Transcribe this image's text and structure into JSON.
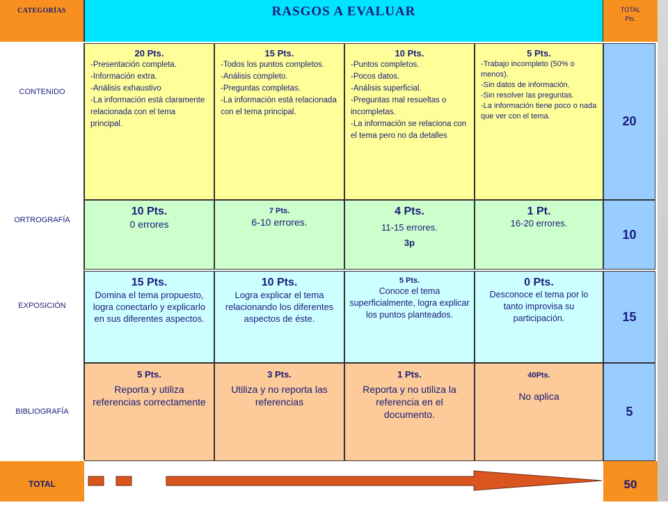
{
  "header": {
    "categories_label": "CATEGORÍAS",
    "title": "RASGOS A EVALUAR",
    "total_label_line1": "TOTAL",
    "total_label_line2": "Pts."
  },
  "categories": [
    {
      "label": "CONTENIDO",
      "score": "20"
    },
    {
      "label": "ORTROGRAFÍA",
      "score": "10"
    },
    {
      "label": "EXPOSICIÓN",
      "score": "15"
    },
    {
      "label": "BIBLIOGRAFÍA",
      "score": "5"
    }
  ],
  "contenido": [
    {
      "points": "20 Pts.",
      "lines": [
        "-Presentación completa.",
        "-Información extra.",
        "-Análisis exhaustivo",
        "-La información está claramente relacionada con el tema principal."
      ]
    },
    {
      "points": "15 Pts.",
      "lines": [
        "-Todos los puntos completos.",
        "-Análisis completo.",
        "-Preguntas completas.",
        "-La información está relacionada con el tema principal."
      ]
    },
    {
      "points": "10 Pts.",
      "lines": [
        "-Puntos completos.",
        "-Pocos datos.",
        "-Análisis superficial.",
        "-Preguntas mal resueltas o incompletas.",
        "-La información se relaciona con el tema pero no da detalles"
      ]
    },
    {
      "points": "5 Pts.",
      "lines": [
        "-Trabajo incompleto (50% o menos).",
        "-Sin datos de información.",
        "-Sin resolver las preguntas.",
        "-La información tiene poco o nada que ver con el tema."
      ]
    }
  ],
  "ortografia": [
    {
      "points": "10 Pts.",
      "desc": "0 errores"
    },
    {
      "points": "7 Pts.",
      "desc": "6-10 errores."
    },
    {
      "points": "4 Pts.",
      "desc": "11-15 errores.",
      "extra": "3p"
    },
    {
      "points": "1 Pt.",
      "desc": "16-20 errores."
    }
  ],
  "exposicion": [
    {
      "points": "15 Pts.",
      "desc": "Domina el tema propuesto, logra conectarlo y explicarlo en sus diferentes aspectos."
    },
    {
      "points": "10 Pts.",
      "desc": "Logra explicar el tema relacionando los diferentes aspectos de éste."
    },
    {
      "points": "5 Pts.",
      "desc": "Conoce el tema superficialmente, logra explicar los puntos planteados."
    },
    {
      "points": "0 Pts.",
      "desc": "Desconoce el tema por lo tanto improvisa su participación."
    }
  ],
  "bibliografia": [
    {
      "points": "5 Pts.",
      "desc": "Reporta y utiliza referencias correctamente"
    },
    {
      "points": "3 Pts.",
      "desc": "Utiliza y no reporta las referencias"
    },
    {
      "points": "1 Pts.",
      "desc": "Reporta y no utiliza la referencia en el documento."
    },
    {
      "points": "40Pts.",
      "desc": "No aplica"
    }
  ],
  "footer": {
    "total_label": "TOTAL",
    "total_value": "50"
  },
  "colors": {
    "orange": "#f7901e",
    "title_cyan": "#00e5ff",
    "yellow": "#ffff99",
    "green": "#ccffcc",
    "light_cyan": "#ccffff",
    "peach": "#fccb99",
    "score_blue": "#99ccff",
    "arrow_red": "#d9561f",
    "text_navy": "#1a1a7a"
  }
}
